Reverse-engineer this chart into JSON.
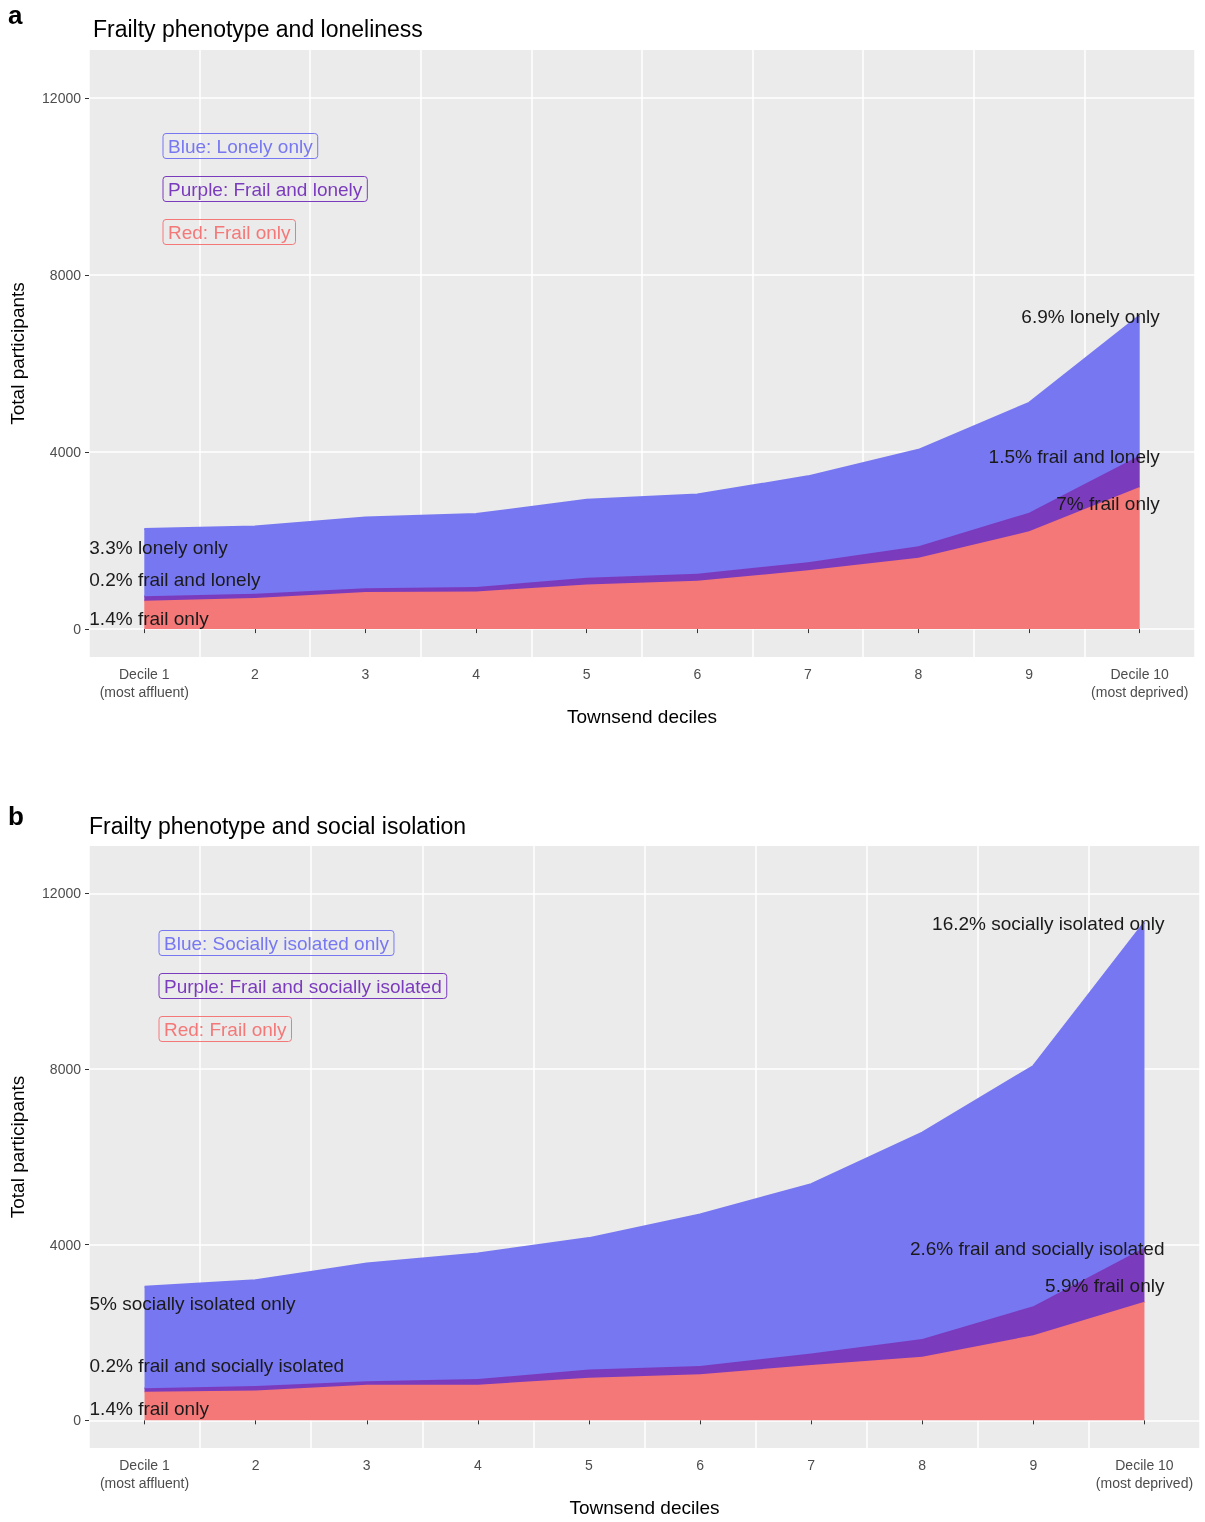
{
  "chart_data": [
    {
      "type": "area",
      "title": "Frailty phenotype and loneliness",
      "xlabel": "Townsend deciles",
      "ylabel": "Total participants",
      "stacked": true,
      "grid": true,
      "legend": "top left",
      "marker": "none",
      "categories": [
        "Decile 1\n(most affluent)",
        "2",
        "3",
        "4",
        "5",
        "6",
        "7",
        "8",
        "9",
        "Decile 10\n(most deprived)"
      ],
      "ylim": [
        -630,
        13080
      ],
      "yticks": [
        0,
        4000,
        8000,
        12000
      ],
      "series": [
        {
          "name": "Red: Frail only",
          "color": "#f47878",
          "values": [
            640,
            700,
            840,
            850,
            1010,
            1090,
            1330,
            1610,
            2210,
            3210
          ]
        },
        {
          "name": "Purple: Frail and lonely",
          "color": "#7b3bbd",
          "values": [
            100,
            100,
            80,
            100,
            150,
            160,
            180,
            260,
            420,
            710
          ]
        },
        {
          "name": "Blue: Lonely only",
          "color": "#7777f2",
          "values": [
            1520,
            1520,
            1600,
            1650,
            1760,
            1790,
            1940,
            2180,
            2480,
            3160
          ]
        }
      ],
      "annotations": [
        "a",
        {
          "text": "6.9% lonely only",
          "x": "Decile 10\n(most deprived)",
          "y": 7050
        },
        {
          "text": "1.5% frail and lonely",
          "x": "Decile 10\n(most deprived)",
          "y": 3890
        },
        {
          "text": "7% frail only",
          "x": "Decile 10\n(most deprived)",
          "y": 2830
        },
        {
          "text": "3.3% lonely only",
          "x": "Decile 1\n(most affluent)",
          "y": 1850
        },
        {
          "text": "0.2% frail and lonely",
          "x": "Decile 1\n(most affluent)",
          "y": 1130
        },
        {
          "text": "1.4% frail only",
          "x": "Decile 1\n(most affluent)",
          "y": 250
        }
      ]
    },
    {
      "type": "area",
      "title": "Frailty phenotype and social isolation",
      "xlabel": "Townsend deciles",
      "ylabel": "Total participants",
      "stacked": true,
      "grid": true,
      "legend": "top left",
      "marker": "none",
      "categories": [
        "Decile 1\n(most affluent)",
        "2",
        "3",
        "4",
        "5",
        "6",
        "7",
        "8",
        "9",
        "Decile 10\n(most deprived)"
      ],
      "ylim": [
        -630,
        13080
      ],
      "yticks": [
        0,
        4000,
        8000,
        12000
      ],
      "series": [
        {
          "name": "Red: Frail only",
          "color": "#f47878",
          "values": [
            650,
            680,
            810,
            810,
            970,
            1050,
            1260,
            1450,
            1940,
            2700
          ]
        },
        {
          "name": "Purple: Frail and socially isolated",
          "color": "#7b3bbd",
          "values": [
            80,
            100,
            80,
            130,
            190,
            190,
            260,
            400,
            660,
            1230
          ]
        },
        {
          "name": "Blue: Socially isolated only",
          "color": "#7777f2",
          "values": [
            2310,
            2410,
            2680,
            2860,
            2990,
            3450,
            3860,
            4700,
            5470,
            7410
          ]
        }
      ],
      "annotations": [
        "b",
        {
          "text": "16.2% socially isolated only",
          "x": "Decile 10\n(most deprived)",
          "y": 11320
        },
        {
          "text": "2.6% frail and socially isolated",
          "x": "Decile 10\n(most deprived)",
          "y": 3910
        },
        {
          "text": "5.9% frail only",
          "x": "Decile 10\n(most deprived)",
          "y": 3070
        },
        {
          "text": "5% socially isolated only",
          "x": "Decile 1\n(most affluent)",
          "y": 2670
        },
        {
          "text": "0.2% frail and socially isolated",
          "x": "Decile 1\n(most affluent)",
          "y": 1240
        },
        {
          "text": "1.4% frail only",
          "x": "Decile 1\n(most affluent)",
          "y": 270
        }
      ]
    }
  ]
}
